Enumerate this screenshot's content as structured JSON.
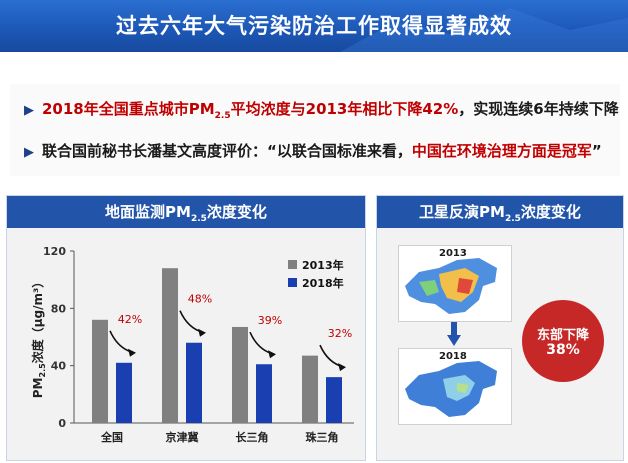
{
  "title": "过去六年大气污染防治工作取得显著成效",
  "bullet1": {
    "a": "2018年全国重点城市PM",
    "sub": "2.5",
    "b": "平均浓度与2013年相比下降42%",
    "c": "，实现连续6年持续下降"
  },
  "bullet2": {
    "a": "联合国前秘书长潘基文高度评价：“以联合国标准来看，",
    "b": "中国在环境治理方面是冠军",
    "c": "”"
  },
  "left_panel": {
    "a": "地面监测PM",
    "sub": "2.5",
    "b": "浓度变化"
  },
  "right_panel": {
    "a": "卫星反演PM",
    "sub": "2.5",
    "b": "浓度变化"
  },
  "chart_data": {
    "type": "bar",
    "categories": [
      "全国",
      "京津冀",
      "长三角",
      "珠三角"
    ],
    "series": [
      {
        "name": "2013年",
        "values": [
          72,
          108,
          67,
          47
        ],
        "color": "#808080"
      },
      {
        "name": "2018年",
        "values": [
          42,
          56,
          41,
          32
        ],
        "color": "#1a3fb0"
      }
    ],
    "declines": [
      "42%",
      "48%",
      "39%",
      "32%"
    ],
    "ylabel_a": "PM",
    "ylabel_sub": "2.5",
    "ylabel_b": "浓度（μg/m³）",
    "yticks": [
      0,
      40,
      80,
      120
    ],
    "ylim": [
      0,
      120
    ]
  },
  "maps": {
    "year1": "2013",
    "year2": "2018"
  },
  "satellite_badge": {
    "line1": "东部下降",
    "line2": "38%"
  }
}
